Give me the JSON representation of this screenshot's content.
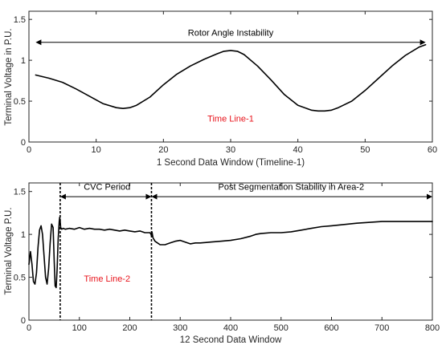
{
  "colors": {
    "line": "#000000",
    "axis": "#262626",
    "timeline_label": "#e8141c",
    "background": "#ffffff"
  },
  "chart_data": [
    {
      "type": "line",
      "xlabel": "1 Second Data Window (Timeline-1)",
      "ylabel": "Terminal Voltage in P.U.",
      "xlim": [
        0,
        60
      ],
      "ylim": [
        0,
        1.6
      ],
      "xticks": [
        "0",
        "10",
        "20",
        "30",
        "40",
        "50",
        "60"
      ],
      "yticks": [
        "0",
        "0.5",
        "1",
        "1.5"
      ],
      "grid": false,
      "series": [
        {
          "x": [
            1,
            3,
            5,
            7,
            9,
            11,
            13,
            14,
            15,
            16,
            18,
            20,
            22,
            24,
            26,
            28,
            29,
            30,
            31,
            32,
            34,
            36,
            38,
            40,
            42,
            43,
            44,
            45,
            46,
            48,
            50,
            52,
            54,
            56,
            58,
            59
          ],
          "y": [
            0.82,
            0.78,
            0.73,
            0.65,
            0.56,
            0.47,
            0.42,
            0.41,
            0.42,
            0.45,
            0.55,
            0.7,
            0.83,
            0.93,
            1.01,
            1.08,
            1.11,
            1.12,
            1.11,
            1.07,
            0.93,
            0.76,
            0.58,
            0.45,
            0.39,
            0.38,
            0.38,
            0.39,
            0.42,
            0.5,
            0.63,
            0.78,
            0.93,
            1.06,
            1.16,
            1.19
          ]
        }
      ],
      "annotations": [
        {
          "text": "Rotor Angle Instability",
          "x": 30,
          "y": 1.3,
          "arrow_from": 1,
          "arrow_to": 59,
          "arrow_y": 1.22
        },
        {
          "text": "Time Line-1",
          "x": 30,
          "y": 0.25,
          "color": "#e8141c"
        }
      ]
    },
    {
      "type": "line",
      "xlabel": "12 Second Data Window",
      "ylabel": "Terminal Voltage P.U.",
      "xlim": [
        0,
        800
      ],
      "ylim": [
        0,
        1.6
      ],
      "xticks": [
        "0",
        "100",
        "200",
        "300",
        "400",
        "500",
        "600",
        "700",
        "800"
      ],
      "yticks": [
        "0",
        "0.5",
        "1",
        "1.5"
      ],
      "grid": false,
      "series": [
        {
          "x": [
            0,
            3,
            6,
            9,
            12,
            15,
            18,
            21,
            24,
            27,
            30,
            33,
            36,
            39,
            42,
            45,
            48,
            50,
            52,
            54,
            56,
            58,
            60,
            61,
            62,
            63,
            65,
            68,
            72,
            80,
            90,
            100,
            110,
            120,
            130,
            140,
            150,
            160,
            170,
            180,
            190,
            200,
            210,
            220,
            230,
            240,
            242,
            243,
            244,
            246,
            250,
            255,
            260,
            270,
            280,
            290,
            300,
            310,
            320,
            330,
            340,
            360,
            380,
            400,
            420,
            440,
            450,
            460,
            480,
            500,
            520,
            540,
            560,
            580,
            600,
            650,
            700,
            750,
            800
          ],
          "y": [
            0.65,
            0.8,
            0.65,
            0.45,
            0.42,
            0.55,
            0.85,
            1.05,
            1.1,
            1.0,
            0.75,
            0.5,
            0.42,
            0.6,
            0.9,
            1.12,
            1.08,
            0.7,
            0.4,
            0.38,
            0.6,
            0.95,
            1.15,
            1.2,
            1.15,
            1.08,
            1.06,
            1.07,
            1.06,
            1.07,
            1.06,
            1.08,
            1.06,
            1.07,
            1.06,
            1.06,
            1.05,
            1.06,
            1.05,
            1.04,
            1.05,
            1.04,
            1.03,
            1.04,
            1.02,
            1.02,
            1.0,
            0.98,
            1.03,
            0.96,
            0.92,
            0.9,
            0.88,
            0.88,
            0.9,
            0.92,
            0.93,
            0.91,
            0.89,
            0.9,
            0.9,
            0.91,
            0.92,
            0.93,
            0.95,
            0.98,
            1.0,
            1.01,
            1.02,
            1.02,
            1.03,
            1.05,
            1.07,
            1.09,
            1.1,
            1.13,
            1.15,
            1.15,
            1.15
          ]
        }
      ],
      "vlines": [
        62,
        243
      ],
      "annotations": [
        {
          "text": "CVC Period",
          "x": 155,
          "y": 1.52,
          "arrow_from": 62,
          "arrow_to": 243,
          "arrow_y": 1.44
        },
        {
          "text": "Post Segmentation Stability in Area-2",
          "x": 520,
          "y": 1.52,
          "arrow_from": 243,
          "arrow_to": 800,
          "arrow_y": 1.44
        },
        {
          "text": "Time Line-2",
          "x": 155,
          "y": 0.45,
          "color": "#e8141c"
        }
      ]
    }
  ]
}
